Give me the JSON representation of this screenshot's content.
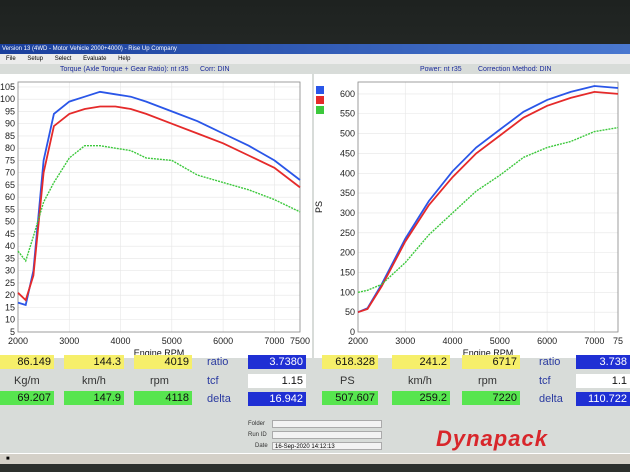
{
  "window": {
    "title": "Version 13 (4WD - Motor Vehicle 2000+4000) - Rise Up Company"
  },
  "menu": [
    "File",
    "Setup",
    "Select",
    "Evaluate",
    "Help"
  ],
  "left_chart": {
    "header_left": "Torque (Axle Torque + Gear Ratio): nt r35",
    "header_right": "Corr: DIN"
  },
  "right_chart": {
    "header_left": "Power: nt r35",
    "header_right": "Correction Method: DIN"
  },
  "left_readout": {
    "row1": {
      "torque": "86.149",
      "speed": "144.3",
      "rpm": "4019"
    },
    "units": {
      "torque": "Kg/m",
      "speed": "km/h",
      "rpm": "rpm"
    },
    "row2": {
      "torque": "69.207",
      "speed": "147.9",
      "rpm": "4118"
    },
    "ratio_label": "ratio",
    "ratio": "3.7380",
    "tcf_label": "tcf",
    "tcf": "1.15",
    "delta_label": "delta",
    "delta": "16.942"
  },
  "right_readout": {
    "row1": {
      "power": "618.328",
      "speed": "241.2",
      "rpm": "6717"
    },
    "units": {
      "power": "PS",
      "speed": "km/h",
      "rpm": "rpm"
    },
    "row2": {
      "power": "507.607",
      "speed": "259.2",
      "rpm": "7220"
    },
    "ratio_label": "ratio",
    "ratio": "3.738",
    "tcf_label": "tcf",
    "tcf": "1.1",
    "delta_label": "delta",
    "delta": "110.722"
  },
  "info": {
    "folder_label": "Folder",
    "run_label": "Run ID",
    "date_label": "Date",
    "date_value": "16-Sep-2020 14:12:13"
  },
  "brand": "Dynapack",
  "chart_data": [
    {
      "type": "line",
      "xlabel": "Engine RPM",
      "ylabel": "",
      "xlim": [
        2000,
        7500
      ],
      "ylim": [
        5,
        107
      ],
      "x_ticks": [
        "2000",
        "3000",
        "4000",
        "5000",
        "6000",
        "7000",
        "7500"
      ],
      "y_ticks": [
        "5",
        "10",
        "15",
        "20",
        "25",
        "30",
        "35",
        "40",
        "45",
        "50",
        "55",
        "60",
        "65",
        "70",
        "75",
        "80",
        "85",
        "90",
        "95",
        "100",
        "105"
      ],
      "x": [
        2000,
        2150,
        2300,
        2500,
        2700,
        3000,
        3300,
        3600,
        3900,
        4200,
        4500,
        5000,
        5500,
        6000,
        6500,
        7000,
        7500
      ],
      "series": [
        {
          "color": "#2a56e8",
          "values": [
            17,
            16,
            30,
            75,
            94,
            99,
            101,
            103,
            102,
            101,
            99,
            95,
            91,
            86,
            81,
            75,
            67
          ]
        },
        {
          "color": "#e52a2a",
          "values": [
            21,
            18,
            28,
            70,
            89,
            94,
            96,
            97,
            97,
            96,
            94,
            90,
            86,
            82,
            77,
            72,
            64
          ]
        },
        {
          "color": "#3cc83c",
          "values": [
            38,
            34,
            44,
            58,
            66,
            76,
            81,
            81,
            80,
            79,
            76,
            75,
            69,
            66,
            63,
            59,
            54
          ]
        }
      ]
    },
    {
      "type": "line",
      "xlabel": "Engine RPM",
      "ylabel": "PS",
      "xlim": [
        2000,
        7500
      ],
      "ylim": [
        0,
        630
      ],
      "x_ticks": [
        "2000",
        "3000",
        "4000",
        "5000",
        "6000",
        "7000",
        "75"
      ],
      "y_ticks": [
        "0",
        "50",
        "100",
        "150",
        "200",
        "250",
        "300",
        "350",
        "400",
        "450",
        "500",
        "550",
        "600"
      ],
      "x": [
        2000,
        2200,
        2500,
        3000,
        3500,
        4000,
        4500,
        5000,
        5500,
        6000,
        6500,
        7000,
        7500
      ],
      "series": [
        {
          "color": "#2a56e8",
          "values": [
            50,
            60,
            120,
            235,
            330,
            405,
            465,
            510,
            555,
            585,
            605,
            620,
            615
          ]
        },
        {
          "color": "#e52a2a",
          "values": [
            50,
            58,
            115,
            228,
            320,
            390,
            450,
            495,
            540,
            570,
            590,
            605,
            600
          ]
        },
        {
          "color": "#3cc83c",
          "values": [
            100,
            105,
            120,
            175,
            245,
            300,
            355,
            395,
            440,
            465,
            480,
            505,
            515
          ]
        }
      ]
    }
  ]
}
